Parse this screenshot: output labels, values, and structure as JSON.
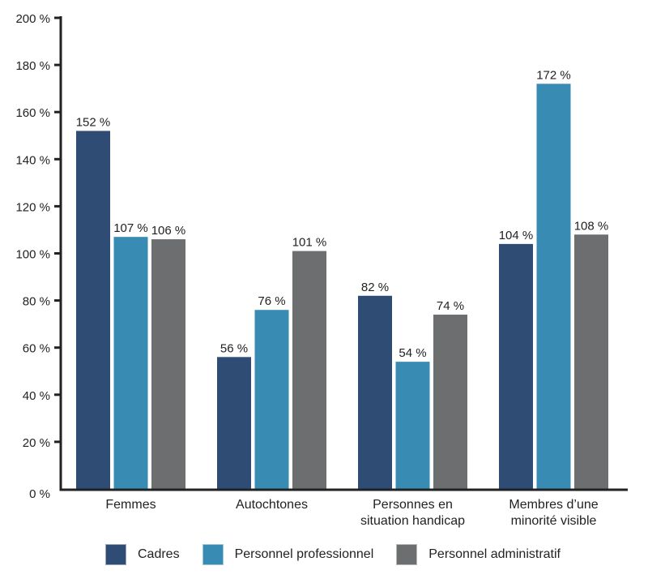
{
  "chart_data": {
    "type": "bar",
    "title": "",
    "xlabel": "",
    "ylabel": "",
    "categories": [
      [
        "Femmes"
      ],
      [
        "Autochtones"
      ],
      [
        "Personnes en",
        "situation handicap"
      ],
      [
        "Membres d’une",
        "minorité visible"
      ]
    ],
    "series": [
      {
        "name": "Cadres",
        "color": "#2f4c74",
        "values": [
          152,
          56,
          82,
          104
        ]
      },
      {
        "name": "Personnel professionnel",
        "color": "#388cb4",
        "values": [
          107,
          76,
          54,
          172
        ]
      },
      {
        "name": "Personnel administratif",
        "color": "#6d6e70",
        "values": [
          106,
          101,
          74,
          108
        ]
      }
    ],
    "value_suffix": " %",
    "ylim": [
      0,
      200
    ],
    "yticks": [
      0,
      20,
      40,
      60,
      80,
      100,
      120,
      140,
      160,
      180,
      200
    ],
    "ytick_labels": [
      "0 %",
      "20 %",
      "40 %",
      "60 %",
      "80 %",
      "100 %",
      "120 %",
      "140 %",
      "160 %",
      "180 %",
      "200 %"
    ],
    "grid": false,
    "legend_position": "bottom"
  }
}
